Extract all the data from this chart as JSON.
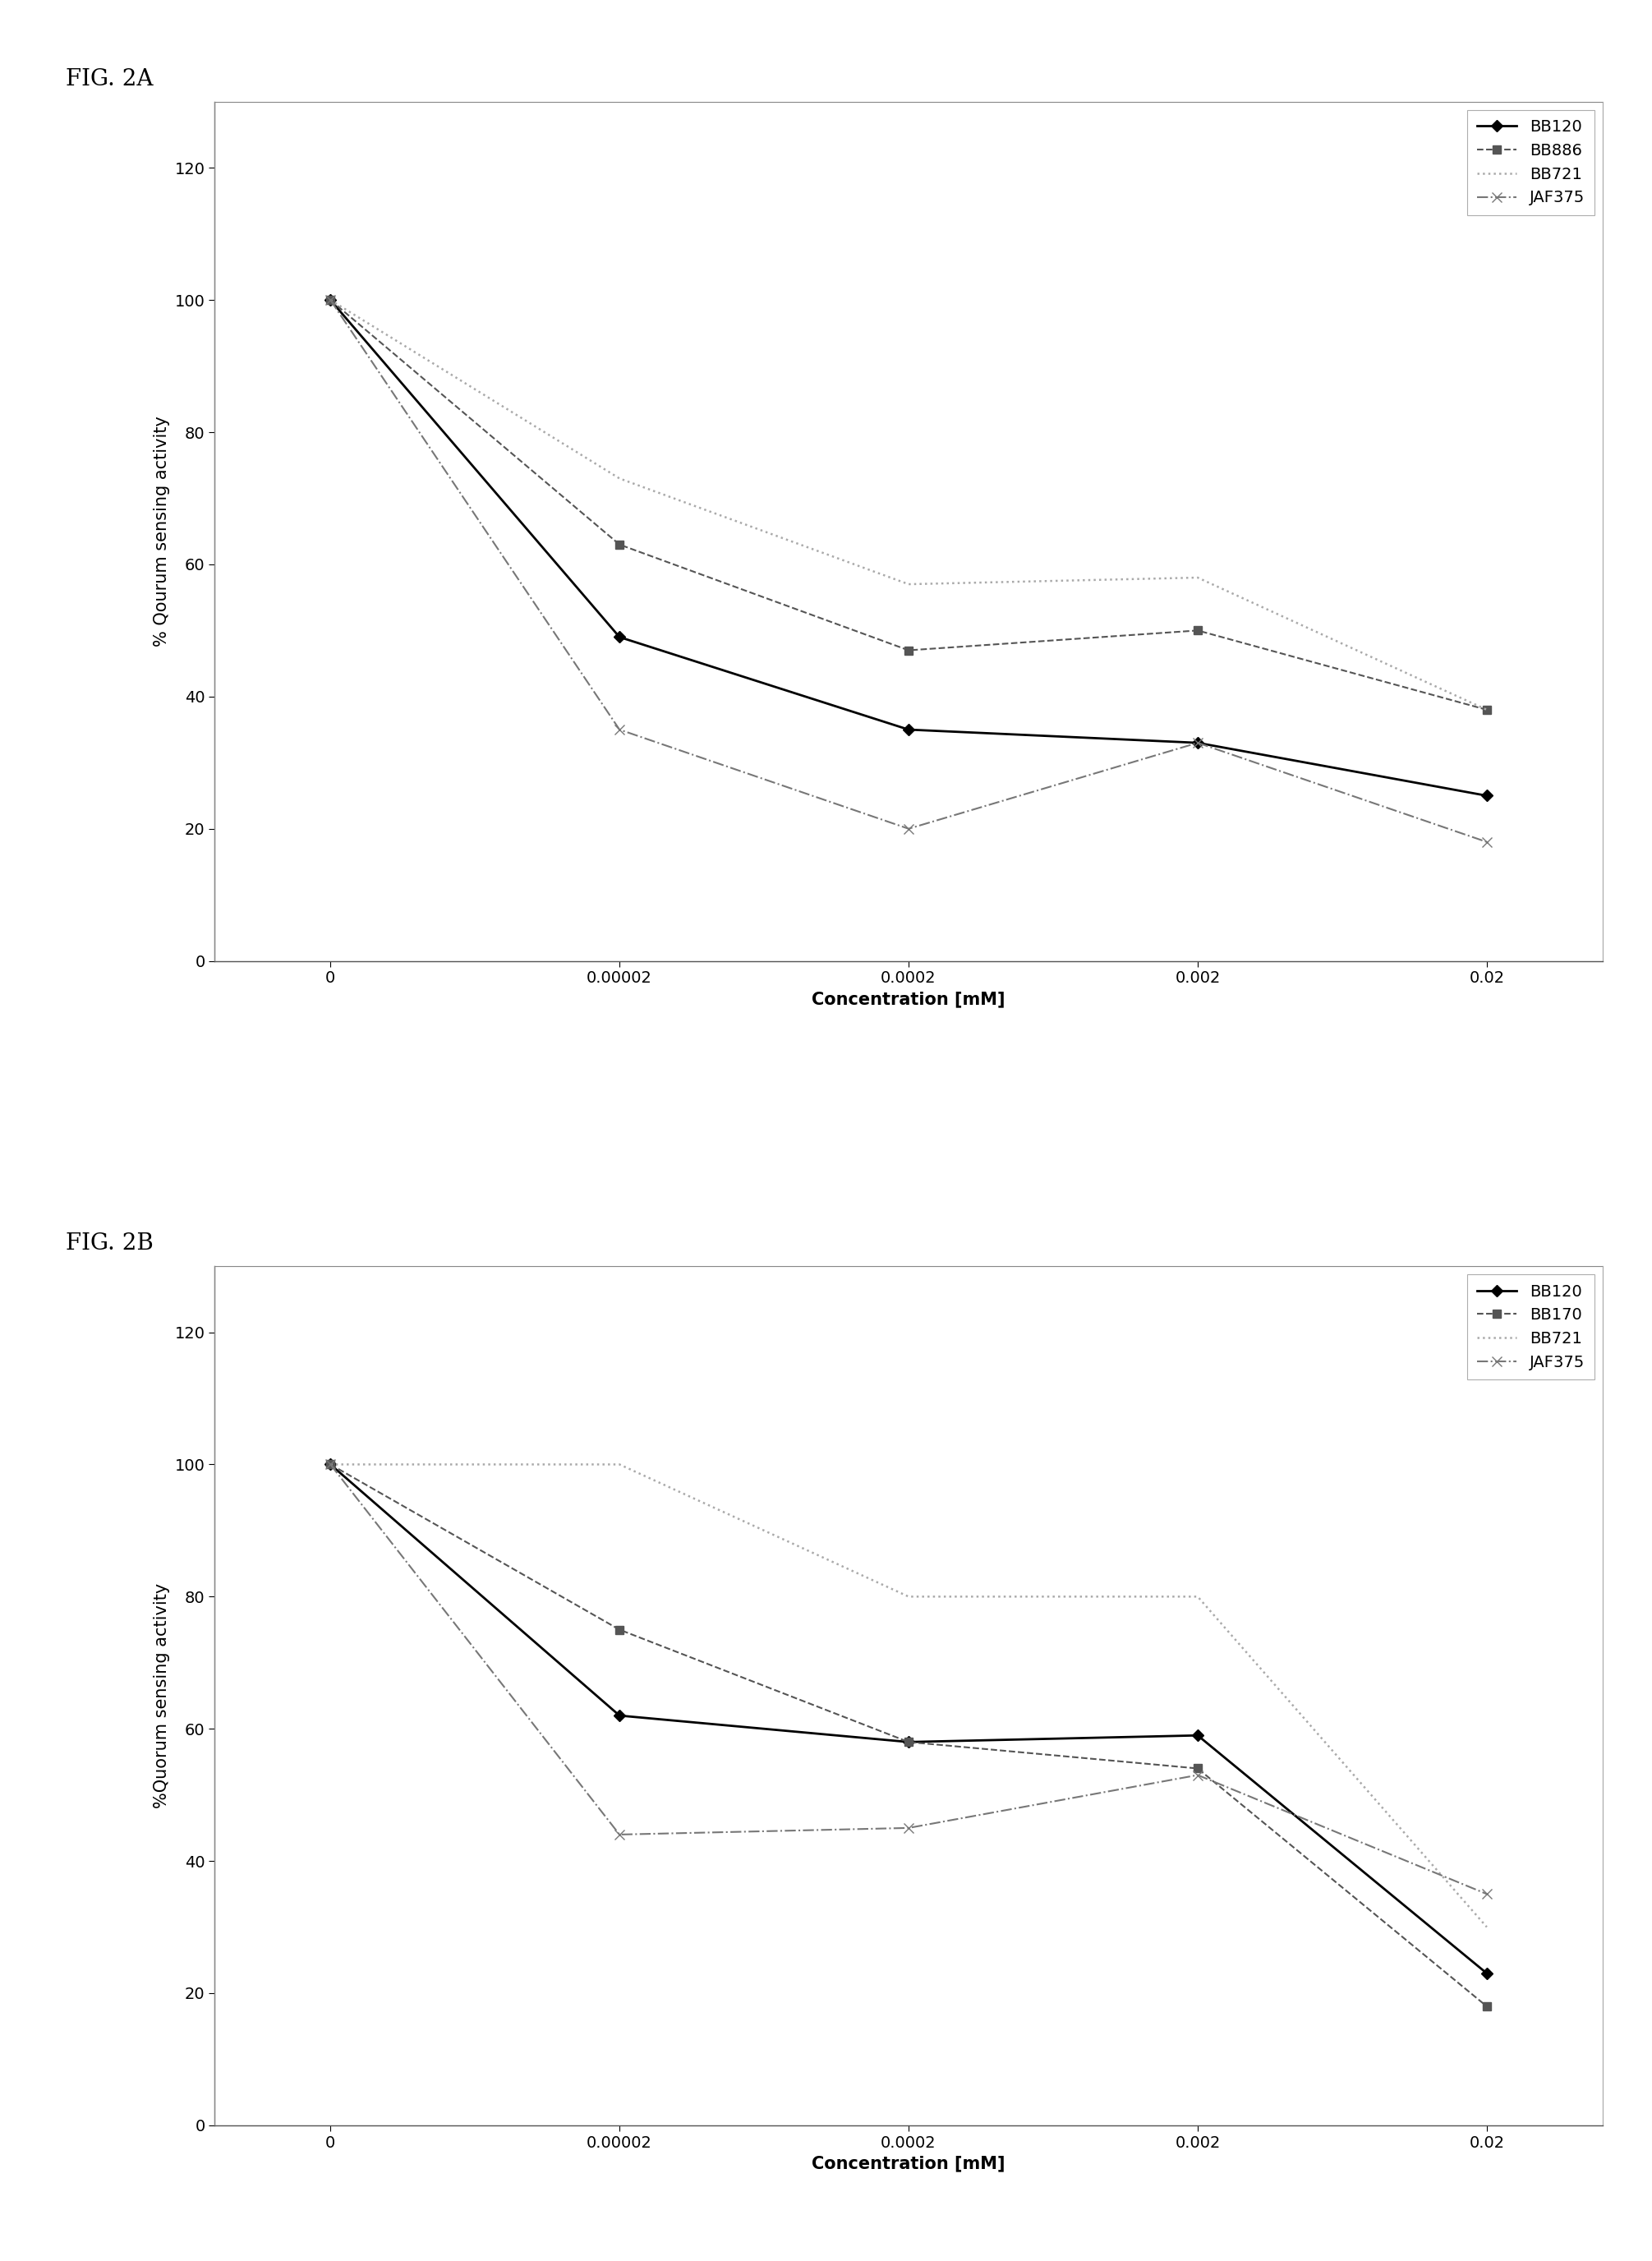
{
  "fig_title_a": "FIG. 2A",
  "fig_title_b": "FIG. 2B",
  "x_positions": [
    0,
    1,
    2,
    3,
    4
  ],
  "x_labels": [
    "0",
    "0.00002",
    "0.0002",
    "0.002",
    "0.02"
  ],
  "xlabel": "Concentration [mM]",
  "ylabel_a": "% Qourum sensing activity",
  "ylabel_b": "%Quorum sensing activity",
  "ylim": [
    0,
    130
  ],
  "yticks": [
    0,
    20,
    40,
    60,
    80,
    100,
    120
  ],
  "series_a": [
    {
      "label": "BB120",
      "values": [
        100,
        49,
        35,
        33,
        25
      ],
      "color": "#000000",
      "linestyle": "-",
      "marker": "D",
      "markersize": 7,
      "linewidth": 2.0
    },
    {
      "label": "BB886",
      "values": [
        100,
        63,
        47,
        50,
        38
      ],
      "color": "#555555",
      "linestyle": "--",
      "marker": "s",
      "markersize": 7,
      "linewidth": 1.5
    },
    {
      "label": "BB721",
      "values": [
        100,
        73,
        57,
        58,
        38
      ],
      "color": "#aaaaaa",
      "linestyle": ":",
      "marker": null,
      "markersize": 0,
      "linewidth": 1.8
    },
    {
      "label": "JAF375",
      "values": [
        100,
        35,
        20,
        33,
        18
      ],
      "color": "#777777",
      "linestyle": "-.",
      "marker": "x",
      "markersize": 8,
      "linewidth": 1.5
    }
  ],
  "series_b": [
    {
      "label": "BB120",
      "values": [
        100,
        62,
        58,
        59,
        23
      ],
      "color": "#000000",
      "linestyle": "-",
      "marker": "D",
      "markersize": 7,
      "linewidth": 2.0
    },
    {
      "label": "BB170",
      "values": [
        100,
        75,
        58,
        54,
        18
      ],
      "color": "#555555",
      "linestyle": "--",
      "marker": "s",
      "markersize": 7,
      "linewidth": 1.5
    },
    {
      "label": "BB721",
      "values": [
        100,
        100,
        80,
        80,
        30
      ],
      "color": "#aaaaaa",
      "linestyle": ":",
      "marker": null,
      "markersize": 0,
      "linewidth": 1.8
    },
    {
      "label": "JAF375",
      "values": [
        100,
        44,
        45,
        53,
        35
      ],
      "color": "#777777",
      "linestyle": "-.",
      "marker": "x",
      "markersize": 8,
      "linewidth": 1.5
    }
  ],
  "legend_loc": "upper right",
  "background_color": "#ffffff",
  "fig_title_fontsize": 20,
  "axis_label_fontsize": 15,
  "tick_fontsize": 14,
  "legend_fontsize": 14
}
